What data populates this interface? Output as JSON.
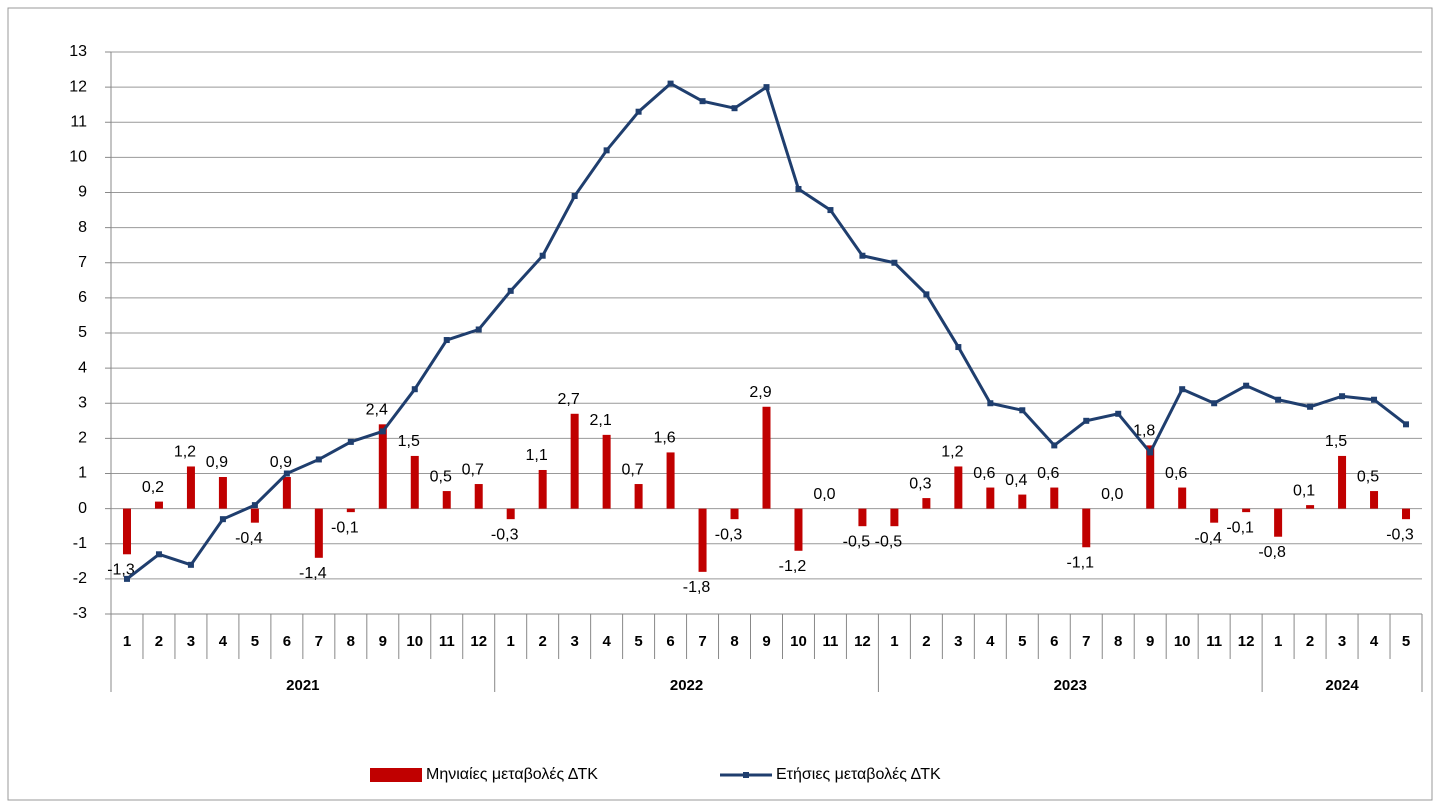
{
  "chart_data": {
    "type": "bar-line",
    "category_groups": [
      {
        "name": "2021",
        "categories": [
          "1",
          "2",
          "3",
          "4",
          "5",
          "6",
          "7",
          "8",
          "9",
          "10",
          "11",
          "12"
        ]
      },
      {
        "name": "2022",
        "categories": [
          "1",
          "2",
          "3",
          "4",
          "5",
          "6",
          "7",
          "8",
          "9",
          "10",
          "11",
          "12"
        ]
      },
      {
        "name": "2023",
        "categories": [
          "1",
          "2",
          "3",
          "4",
          "5",
          "6",
          "7",
          "8",
          "9",
          "10",
          "11",
          "12"
        ]
      },
      {
        "name": "2024",
        "categories": [
          "1",
          "2",
          "3",
          "4",
          "5"
        ]
      }
    ],
    "series": [
      {
        "name": "Μηνιαίες μεταβολές ΔΤΚ",
        "type": "bar",
        "color": "#c00000",
        "values": [
          -1.3,
          0.2,
          1.2,
          0.9,
          -0.4,
          0.9,
          -1.4,
          -0.1,
          2.4,
          1.5,
          0.5,
          0.7,
          -0.3,
          1.1,
          2.7,
          2.1,
          0.7,
          1.6,
          -1.8,
          -0.3,
          2.9,
          -1.2,
          0.0,
          -0.5,
          -0.5,
          0.3,
          1.2,
          0.6,
          0.4,
          0.6,
          -1.1,
          0.0,
          1.8,
          0.6,
          -0.4,
          -0.1,
          -0.8,
          0.1,
          1.5,
          0.5,
          -0.3
        ],
        "value_labels": [
          "-1,3",
          "0,2",
          "1,2",
          "0,9",
          "-0,4",
          "0,9",
          "-1,4",
          "-0,1",
          "2,4",
          "1,5",
          "0,5",
          "0,7",
          "-0,3",
          "1,1",
          "2,7",
          "2,1",
          "0,7",
          "1,6",
          "-1,8",
          "-0,3",
          "2,9",
          "-1,2",
          "0,0",
          "-0,5",
          "-0,5",
          "0,3",
          "1,2",
          "0,6",
          "0,4",
          "0,6",
          "-1,1",
          "0,0",
          "1,8",
          "0,6",
          "-0,4",
          "-0,1",
          "-0,8",
          "0,1",
          "1,5",
          "0,5",
          "-0,3"
        ]
      },
      {
        "name": "Ετήσιες μεταβολές ΔΤΚ",
        "type": "line",
        "color": "#1f3e6e",
        "values": [
          -2.0,
          -1.3,
          -1.6,
          -0.3,
          0.1,
          1.0,
          1.4,
          1.9,
          2.2,
          3.4,
          4.8,
          5.1,
          6.2,
          7.2,
          8.9,
          10.2,
          11.3,
          12.1,
          11.6,
          11.4,
          12.0,
          9.1,
          8.5,
          7.2,
          7.0,
          6.1,
          4.6,
          3.0,
          2.8,
          1.8,
          2.5,
          2.7,
          1.6,
          3.4,
          3.0,
          3.5,
          3.1,
          2.9,
          3.2,
          3.1,
          2.4
        ]
      }
    ],
    "ylim": [
      -3,
      13
    ],
    "yticks": [
      -3,
      -2,
      -1,
      0,
      1,
      2,
      3,
      4,
      5,
      6,
      7,
      8,
      9,
      10,
      11,
      12,
      13
    ],
    "grid": true,
    "legend": "bottom"
  }
}
